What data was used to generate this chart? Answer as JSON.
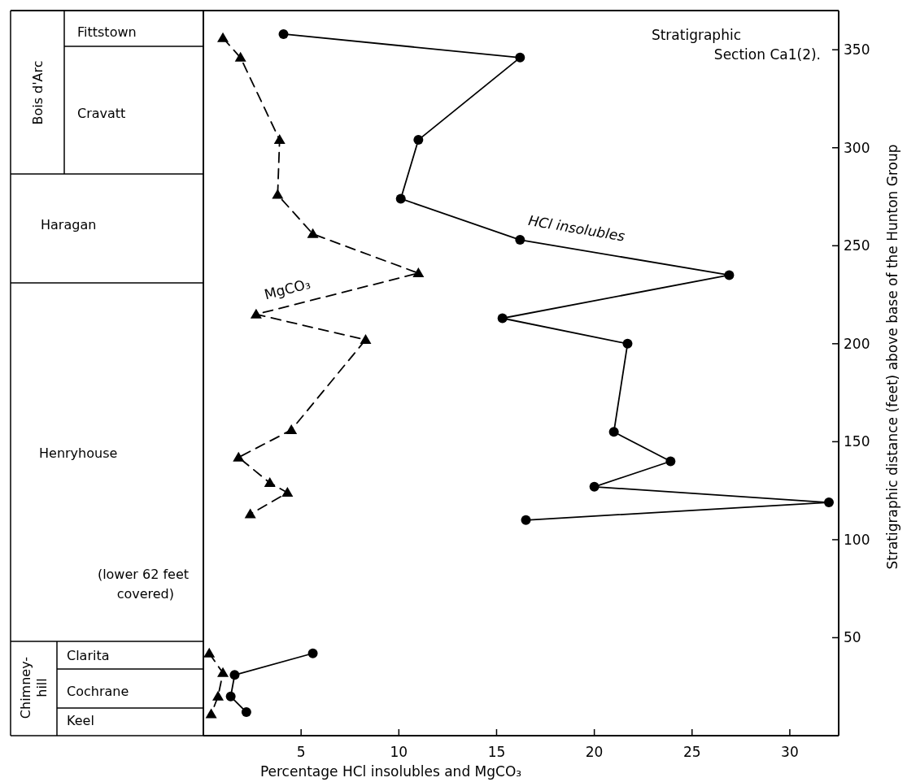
{
  "chart_data": {
    "type": "line",
    "title": "Stratigraphic Section Ca1(2).",
    "xlabel": "Percentage HCl insolubles and MgCO₃",
    "ylabel": "Stratigraphic distance (feet) above base of the Hunton Group",
    "xlim": [
      0,
      32.5
    ],
    "ylim": [
      0,
      370
    ],
    "xticks": [
      5,
      10,
      15,
      20,
      25,
      30
    ],
    "yticks": [
      50,
      100,
      150,
      200,
      250,
      300,
      350
    ],
    "grid": false,
    "series": [
      {
        "name": "HCl insolubles",
        "color": "#000000",
        "marker": "circle",
        "line_style": "solid",
        "x": [
          4.1,
          16.2,
          11.0,
          10.1,
          16.2,
          26.9,
          15.3,
          21.7,
          21.0,
          23.9,
          20.0,
          32.0,
          16.5,
          null,
          5.6,
          1.6,
          1.4,
          2.2
        ],
        "values": [
          358,
          346,
          304,
          274,
          253,
          235,
          213,
          200,
          155,
          140,
          127,
          119,
          110,
          null,
          42,
          31,
          20,
          12
        ]
      },
      {
        "name": "MgCO₃",
        "color": "#000000",
        "marker": "triangle",
        "line_style": "dashed",
        "x": [
          1.0,
          1.9,
          3.9,
          3.8,
          5.6,
          11.0,
          2.7,
          8.3,
          4.5,
          1.8,
          3.4,
          4.3,
          2.4,
          null,
          0.3,
          1.0,
          0.75,
          0.4
        ],
        "values": [
          356,
          346,
          304,
          276,
          256,
          236,
          215,
          202,
          156,
          142,
          129,
          124,
          113,
          null,
          42,
          32,
          20,
          11
        ]
      }
    ],
    "annotations": [
      "Bois d'Arc",
      "Fittstown",
      "Cravatt",
      "Haragan",
      "Henryhouse",
      "(lower 62 feet covered)",
      "Chimney-hill",
      "Clarita",
      "Cochrane",
      "Keel"
    ]
  }
}
